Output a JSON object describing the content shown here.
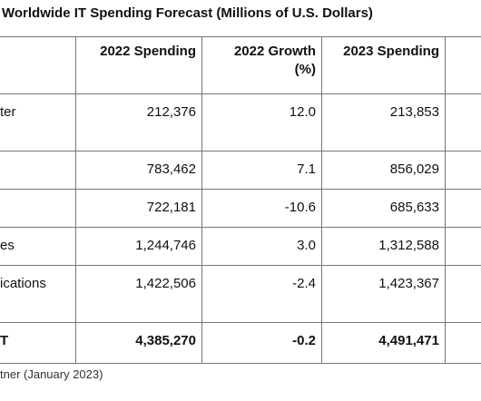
{
  "title": "Worldwide IT Spending Forecast (Millions of U.S. Dollars)",
  "table": {
    "header": [
      null,
      "2022 Spending",
      "2022 Growth (%)",
      "2023 Spending"
    ],
    "rows": [
      {
        "label": "ter",
        "values": [
          "212,376",
          "12.0",
          "213,853"
        ]
      },
      {
        "label": null,
        "values": [
          "783,462",
          "7.1",
          "856,029"
        ]
      },
      {
        "label": null,
        "values": [
          "722,181",
          "-10.6",
          "685,633"
        ]
      },
      {
        "label": "es",
        "values": [
          "1,244,746",
          "3.0",
          "1,312,588"
        ]
      },
      {
        "label": "ications",
        "values": [
          "1,422,506",
          "-2.4",
          "1,423,367"
        ]
      },
      {
        "label": "T",
        "values": [
          "4,385,270",
          "-0.2",
          "4,491,471"
        ]
      }
    ]
  },
  "source": "tner (January 2023)"
}
